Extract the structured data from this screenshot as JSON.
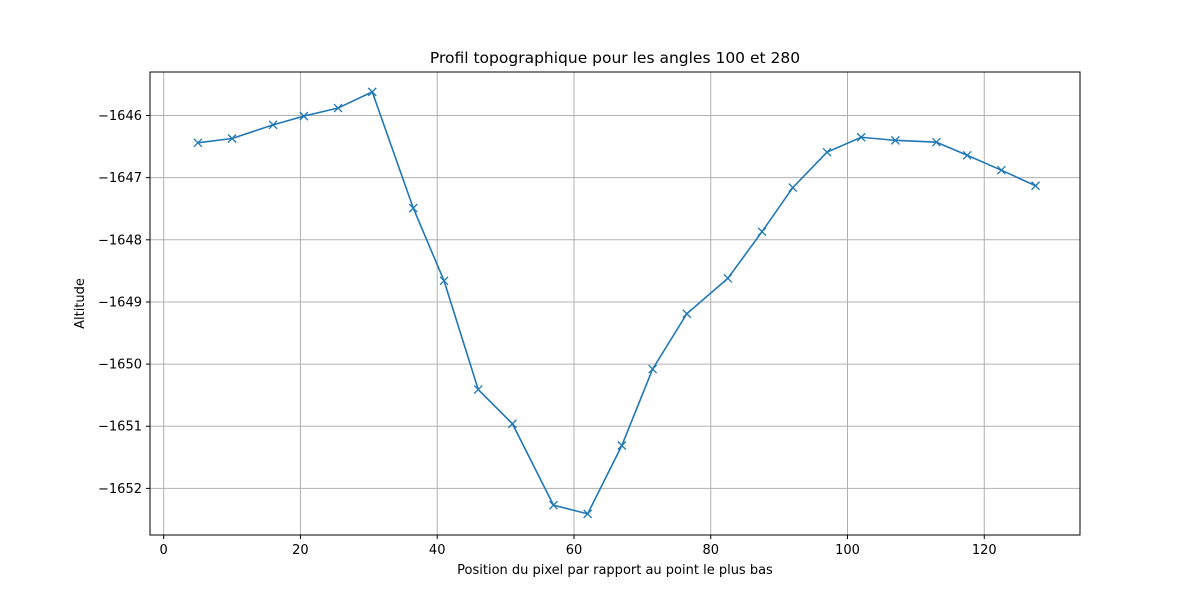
{
  "chart_data": {
    "type": "line",
    "title": "Profil topographique pour les angles 100 et 280",
    "xlabel": "Position du pixel par rapport au point le plus bas",
    "ylabel": "Altitude",
    "xlim": [
      -2,
      134
    ],
    "ylim": [
      -1652.75,
      -1645.3
    ],
    "xticks": [
      0,
      20,
      40,
      60,
      80,
      100,
      120
    ],
    "yticks": [
      -1652,
      -1651,
      -1650,
      -1649,
      -1648,
      -1647,
      -1646
    ],
    "grid": true,
    "marker": "x",
    "color": "#1f77b4",
    "series": [
      {
        "x": [
          5,
          10,
          16,
          20.5,
          25.5,
          30.5,
          36.5,
          41,
          46,
          51,
          57,
          62,
          67,
          71.5,
          76.5,
          82.5,
          87.5,
          92,
          97,
          102,
          107,
          113,
          117.5,
          122.5,
          127.5
        ],
        "y": [
          -1646.44,
          -1646.37,
          -1646.15,
          -1646.01,
          -1645.88,
          -1645.62,
          -1647.49,
          -1648.66,
          -1650.41,
          -1650.96,
          -1652.27,
          -1652.41,
          -1651.31,
          -1650.08,
          -1649.19,
          -1648.62,
          -1647.87,
          -1647.16,
          -1646.59,
          -1646.35,
          -1646.4,
          -1646.43,
          -1646.64,
          -1646.88,
          -1647.13
        ]
      }
    ]
  }
}
